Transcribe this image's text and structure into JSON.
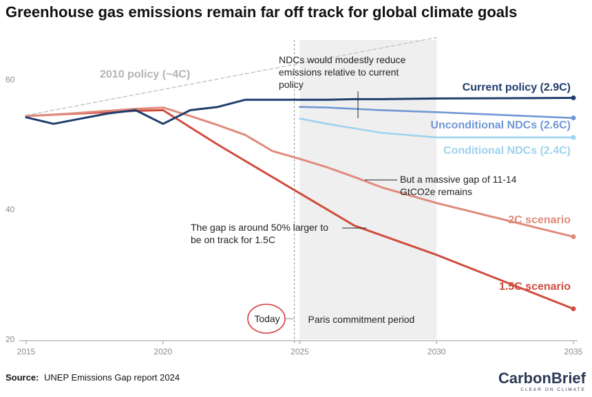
{
  "source_label": "Source:",
  "source_text": "UNEP Emissions Gap report 2024",
  "logo": {
    "text": "CarbonBrief",
    "tagline": "CLEAR ON CLIMATE"
  },
  "chart_data": {
    "type": "line",
    "title": "Greenhouse gas emissions remain far off track for global climate goals",
    "xlim": [
      2015,
      2035
    ],
    "ylim": [
      20,
      65
    ],
    "x_ticks": [
      2015,
      2020,
      2025,
      2030,
      2035
    ],
    "y_ticks": [
      20,
      40,
      60
    ],
    "grid": false,
    "shaded_period": {
      "label": "Paris commitment period",
      "from": 2025,
      "to": 2030
    },
    "today": {
      "label": "Today",
      "year": 2024.8
    },
    "series": [
      {
        "name": "2010 policy (~4C)",
        "color": "#c8c8c8",
        "dashed": true,
        "x": [
          2015,
          2030
        ],
        "y": [
          54.5,
          66.5
        ]
      },
      {
        "name": "1.5C scenario",
        "color": "#d04b3c",
        "x": [
          2015,
          2016,
          2017,
          2018,
          2019,
          2020,
          2022,
          2025,
          2027,
          2030,
          2035
        ],
        "y": [
          54.4,
          54.6,
          54.8,
          55.0,
          55.2,
          55.3,
          50.0,
          42.5,
          37.5,
          33.0,
          24.7
        ]
      },
      {
        "name": "2C scenario",
        "color": "#e08a7a",
        "x": [
          2015,
          2016,
          2017,
          2018,
          2019,
          2020,
          2021,
          2022,
          2023,
          2024,
          2025,
          2026,
          2027,
          2028,
          2030,
          2035
        ],
        "y": [
          54.4,
          54.6,
          54.9,
          55.2,
          55.5,
          55.7,
          54.4,
          53.0,
          51.5,
          49.0,
          47.8,
          46.5,
          45.0,
          43.4,
          41.0,
          35.8
        ]
      },
      {
        "name": "Unconditional NDCs (2.6C)",
        "color": "#6f97d4",
        "x": [
          2025,
          2026,
          2027,
          2028,
          2030,
          2035
        ],
        "y": [
          55.8,
          55.7,
          55.5,
          55.3,
          55.0,
          54.1
        ]
      },
      {
        "name": "Conditional NDCs (2.4C)",
        "color": "#9ed2ee",
        "x": [
          2025,
          2026,
          2027,
          2028,
          2030,
          2035
        ],
        "y": [
          54.0,
          53.2,
          52.5,
          51.8,
          51.1,
          51.1
        ]
      },
      {
        "name": "Current policy (2.9C)",
        "color": "#1f3c6e",
        "x": [
          2015,
          2016,
          2017,
          2018,
          2019,
          2020,
          2021,
          2022,
          2023,
          2024,
          2025,
          2026,
          2027,
          2028,
          2030,
          2035
        ],
        "y": [
          54.2,
          53.2,
          54.0,
          54.8,
          55.3,
          53.2,
          55.3,
          55.8,
          56.9,
          56.9,
          56.9,
          56.9,
          57.0,
          57.0,
          57.1,
          57.2
        ]
      }
    ],
    "annotations": [
      {
        "lines": [
          "NDCs would modestly reduce",
          "emissions relative to current",
          "policy"
        ]
      },
      {
        "lines": [
          "But a massive gap of 11-14",
          "GtCO2e remains"
        ]
      },
      {
        "lines": [
          "The gap is around 50% larger to",
          "be on track for 1.5C"
        ]
      }
    ]
  }
}
